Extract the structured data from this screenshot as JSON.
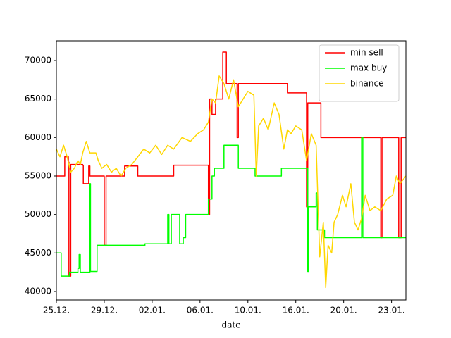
{
  "chart_data": {
    "type": "line",
    "x_label": "date",
    "xlim": [
      0,
      29.2
    ],
    "ylim": [
      38900,
      72560
    ],
    "xticks": [
      {
        "value": 0,
        "label": "25.12."
      },
      {
        "value": 4,
        "label": "29.12."
      },
      {
        "value": 8,
        "label": "02.01."
      },
      {
        "value": 12,
        "label": "06.01."
      },
      {
        "value": 16,
        "label": "10.01."
      },
      {
        "value": 20,
        "label": "16.01."
      },
      {
        "value": 24,
        "label": "20.01."
      },
      {
        "value": 28,
        "label": "23.01."
      }
    ],
    "yticks": [
      40000,
      45000,
      50000,
      55000,
      60000,
      65000,
      70000
    ],
    "legend": "upper right",
    "series": [
      {
        "name": "min sell",
        "color": "#ff0000",
        "drawstyle": "steps-post",
        "x": [
          0,
          0.7,
          1.0,
          1.05,
          1.2,
          2.2,
          2.25,
          2.7,
          2.8,
          4.0,
          4.15,
          5.7,
          6.8,
          9.8,
          12.7,
          12.8,
          13.0,
          13.3,
          13.9,
          14.2,
          15.1,
          15.2,
          19.3,
          20.9,
          21.0,
          22.1,
          27.1,
          27.2,
          28.6,
          28.8,
          29.2
        ],
        "values": [
          55000,
          57500,
          56800,
          42000,
          56500,
          56400,
          54000,
          56300,
          55000,
          46000,
          55000,
          56300,
          55000,
          56400,
          50000,
          65000,
          63000,
          65000,
          71100,
          67000,
          60000,
          67000,
          65800,
          51000,
          64500,
          60000,
          47000,
          60000,
          47000,
          60000,
          60000
        ]
      },
      {
        "name": "max buy",
        "color": "#00ff00",
        "drawstyle": "steps-post",
        "x": [
          0,
          0.4,
          1.1,
          1.8,
          1.9,
          2.0,
          2.8,
          2.85,
          3.4,
          7.4,
          9.3,
          9.4,
          9.6,
          10.3,
          10.6,
          10.8,
          12.7,
          13.0,
          13.2,
          14.0,
          15.2,
          16.6,
          18.8,
          21.0,
          21.05,
          21.7,
          21.8,
          22.4,
          25.5,
          25.6,
          29.2
        ],
        "values": [
          45000,
          42000,
          42500,
          43000,
          44800,
          42500,
          54000,
          42600,
          46000,
          46200,
          50000,
          46200,
          50000,
          46200,
          47000,
          50000,
          52000,
          55000,
          56000,
          59000,
          56000,
          55000,
          56000,
          42600,
          51000,
          52800,
          48000,
          47000,
          60000,
          47000,
          47000
        ]
      },
      {
        "name": "binance",
        "color": "#ffd700",
        "drawstyle": "default",
        "x": [
          0,
          0.3,
          0.6,
          0.9,
          1.2,
          1.5,
          1.8,
          2.0,
          2.2,
          2.5,
          2.8,
          3.3,
          3.5,
          3.8,
          4.2,
          4.6,
          5.0,
          5.4,
          5.8,
          6.3,
          6.8,
          7.3,
          7.8,
          8.3,
          8.8,
          9.3,
          9.8,
          10.5,
          11.2,
          11.8,
          12.3,
          12.7,
          13.0,
          13.3,
          13.6,
          14.0,
          14.4,
          14.8,
          15.2,
          15.6,
          16.0,
          16.5,
          16.7,
          16.9,
          17.3,
          17.7,
          18.2,
          18.6,
          19.0,
          19.3,
          19.6,
          20.0,
          20.5,
          20.9,
          21.3,
          21.7,
          22.0,
          22.3,
          22.5,
          22.7,
          23.0,
          23.2,
          23.5,
          23.9,
          24.2,
          24.6,
          24.9,
          25.2,
          25.5,
          25.8,
          26.2,
          26.6,
          27.1,
          27.6,
          28.1,
          28.4,
          28.7,
          29.2
        ],
        "values": [
          58500,
          57500,
          59000,
          57500,
          55500,
          56000,
          57000,
          56500,
          58000,
          59500,
          58000,
          58000,
          57000,
          56000,
          56500,
          55500,
          56000,
          55000,
          56000,
          56500,
          57500,
          58500,
          58000,
          59000,
          57800,
          59000,
          58500,
          60000,
          59500,
          60500,
          61000,
          62000,
          65000,
          64500,
          68000,
          67000,
          65000,
          67500,
          64000,
          65000,
          66000,
          65500,
          55000,
          61500,
          62500,
          61000,
          64500,
          63000,
          58500,
          61000,
          60500,
          61500,
          61000,
          57000,
          60500,
          59000,
          44500,
          49000,
          40500,
          46000,
          45000,
          49000,
          50000,
          52500,
          51000,
          54000,
          49000,
          48000,
          49500,
          52500,
          50500,
          51000,
          50500,
          52000,
          52500,
          55000,
          54000,
          55000
        ]
      }
    ]
  }
}
